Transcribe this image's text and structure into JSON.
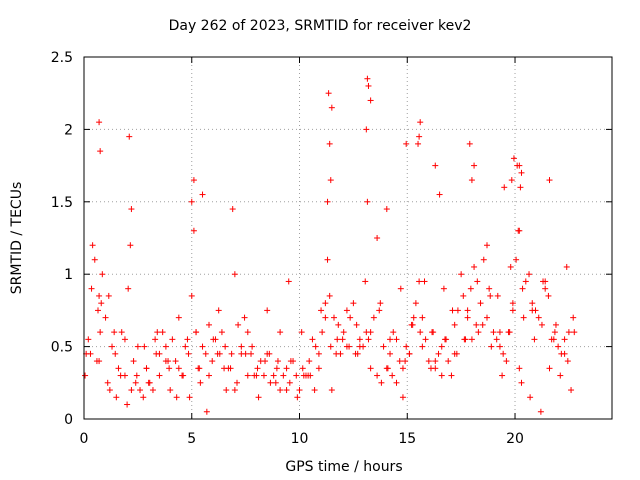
{
  "chart_data": {
    "type": "scatter",
    "title": "Day 262 of 2023, SRMTID for receiver kev2",
    "xlabel": "GPS time / hours",
    "ylabel": "SRMTID / TECUs",
    "xlim": [
      0,
      24.5
    ],
    "ylim": [
      0,
      2.5
    ],
    "xticks": [
      0,
      5,
      10,
      15,
      20
    ],
    "xtick_labels": [
      "0",
      "5",
      "10",
      "15",
      "20"
    ],
    "yticks": [
      0,
      0.5,
      1,
      1.5,
      2,
      2.5
    ],
    "ytick_labels": [
      "0",
      "0.5",
      "1",
      "1.5",
      "2",
      "2.5"
    ],
    "grid": true,
    "marker": "+",
    "series": [
      {
        "name": "SRMTID",
        "color": "#ff0000",
        "x": [
          0.05,
          0.2,
          0.35,
          0.5,
          0.65,
          0.75,
          0.85,
          1.0,
          1.15,
          1.3,
          1.45,
          1.6,
          1.75,
          1.9,
          2.05,
          2.15,
          2.3,
          2.45,
          2.6,
          2.75,
          2.9,
          3.05,
          3.2,
          3.35,
          3.5,
          3.65,
          3.8,
          3.95,
          4.1,
          4.25,
          4.4,
          4.55,
          4.7,
          4.85,
          5.0,
          5.1,
          5.2,
          5.35,
          5.5,
          5.65,
          5.8,
          5.95,
          6.1,
          6.25,
          6.4,
          6.55,
          6.7,
          6.85,
          7.0,
          7.15,
          7.3,
          7.45,
          7.6,
          7.75,
          7.9,
          8.05,
          8.2,
          8.35,
          8.5,
          8.65,
          8.8,
          8.95,
          9.1,
          9.25,
          9.4,
          9.55,
          9.7,
          9.85,
          10.0,
          10.15,
          10.3,
          10.45,
          10.6,
          10.75,
          10.9,
          11.05,
          11.2,
          11.3,
          11.45,
          11.6,
          11.75,
          11.9,
          12.05,
          12.2,
          12.35,
          12.5,
          12.65,
          12.8,
          12.95,
          13.05,
          13.15,
          13.3,
          13.45,
          13.6,
          13.75,
          13.9,
          14.05,
          14.2,
          14.35,
          14.5,
          14.65,
          14.8,
          14.95,
          15.1,
          15.25,
          15.4,
          15.55,
          15.7,
          15.85,
          16.0,
          16.15,
          16.3,
          16.45,
          16.6,
          16.75,
          16.9,
          17.05,
          17.2,
          17.35,
          17.5,
          17.65,
          17.8,
          17.95,
          18.1,
          18.25,
          18.4,
          18.55,
          18.7,
          18.85,
          19.0,
          19.15,
          19.3,
          19.45,
          19.6,
          19.75,
          19.9,
          20.05,
          20.2,
          20.35,
          20.5,
          20.65,
          20.8,
          20.95,
          21.1,
          21.25,
          21.4,
          21.55,
          21.7,
          21.85,
          22.0,
          22.15,
          22.3,
          22.45,
          22.6,
          22.75,
          0.1,
          0.4,
          0.7,
          1.2,
          1.5,
          2.0,
          2.5,
          3.0,
          3.4,
          3.9,
          4.3,
          4.8,
          5.3,
          5.8,
          6.2,
          6.6,
          7.1,
          7.6,
          8.1,
          8.6,
          9.0,
          9.5,
          10.1,
          10.5,
          11.0,
          11.4,
          11.8,
          12.3,
          12.7,
          13.2,
          13.6,
          14.1,
          14.5,
          14.9,
          15.3,
          15.8,
          16.2,
          16.7,
          17.1,
          17.6,
          18.0,
          18.5,
          18.9,
          19.4,
          19.8,
          20.3,
          20.7,
          21.2,
          21.6,
          22.1,
          22.5,
          0.6,
          1.1,
          1.7,
          2.2,
          2.8,
          3.3,
          3.8,
          4.4,
          4.9,
          5.4,
          6.0,
          6.5,
          7.0,
          7.5,
          8.0,
          8.5,
          9.1,
          9.6,
          10.2,
          10.7,
          11.2,
          11.7,
          12.2,
          12.8,
          13.3,
          13.8,
          14.3,
          14.8,
          15.2,
          15.7,
          16.3,
          16.8,
          17.3,
          17.8,
          18.3,
          18.8,
          19.3,
          19.9,
          20.4,
          20.9,
          21.4,
          21.9,
          22.4,
          0.3,
          0.8,
          1.4,
          1.9,
          2.4,
          2.9,
          3.5,
          4.0,
          4.6,
          5.2,
          5.7,
          6.3,
          6.8,
          7.3,
          7.8,
          8.4,
          8.9,
          9.4,
          9.9,
          10.4,
          10.9,
          11.5,
          12.0,
          12.6,
          13.1,
          13.7,
          14.2,
          14.7,
          15.1,
          15.6,
          16.1,
          16.6,
          17.2,
          17.7,
          18.2,
          18.7,
          19.2,
          19.7,
          20.2,
          20.8,
          21.3,
          21.8,
          22.3,
          22.7,
          0.7,
          0.75,
          0.7,
          2.1,
          2.2,
          5.0,
          5.1,
          5.5,
          11.3,
          11.35,
          11.5,
          11.4,
          11.45,
          13.1,
          13.15,
          13.2,
          13.3,
          14.95,
          15.5,
          15.6,
          15.55,
          17.9,
          18.0,
          18.1,
          19.5,
          20.1,
          20.2,
          20.3,
          21.6,
          6.9,
          14.05,
          19.85,
          16.3,
          16.5,
          20.15,
          19.95,
          20.25
        ],
        "y": [
          0.3,
          0.55,
          0.9,
          1.1,
          0.75,
          0.6,
          1.0,
          0.7,
          0.85,
          0.5,
          0.45,
          0.35,
          0.6,
          0.55,
          0.9,
          1.2,
          0.4,
          0.3,
          0.2,
          0.15,
          0.35,
          0.25,
          0.2,
          0.45,
          0.3,
          0.6,
          0.5,
          0.35,
          0.55,
          0.4,
          0.7,
          0.3,
          0.5,
          0.45,
          0.85,
          1.3,
          0.6,
          0.35,
          0.5,
          0.45,
          0.65,
          0.4,
          0.55,
          0.75,
          0.6,
          0.5,
          0.35,
          0.45,
          1.0,
          0.65,
          0.5,
          0.7,
          0.6,
          0.45,
          0.3,
          0.35,
          0.4,
          0.3,
          0.45,
          0.25,
          0.3,
          0.35,
          0.2,
          0.3,
          0.35,
          0.25,
          0.4,
          0.3,
          0.2,
          0.35,
          0.3,
          0.4,
          0.55,
          0.5,
          0.45,
          0.6,
          0.8,
          1.1,
          0.5,
          0.7,
          0.55,
          0.45,
          0.6,
          0.5,
          0.7,
          0.8,
          0.65,
          0.55,
          0.5,
          0.95,
          1.5,
          0.6,
          0.7,
          1.25,
          0.8,
          0.5,
          0.35,
          0.45,
          0.6,
          0.55,
          0.4,
          0.35,
          0.5,
          0.45,
          0.65,
          0.8,
          0.95,
          0.7,
          0.55,
          0.4,
          0.6,
          0.35,
          0.45,
          0.5,
          0.55,
          0.4,
          0.3,
          0.65,
          0.75,
          1.0,
          0.55,
          0.7,
          0.9,
          1.05,
          0.95,
          0.8,
          1.1,
          0.7,
          0.85,
          0.6,
          0.55,
          0.5,
          0.45,
          0.4,
          0.6,
          0.75,
          1.1,
          1.3,
          0.9,
          0.95,
          1.0,
          0.8,
          0.75,
          0.7,
          0.65,
          0.9,
          0.85,
          0.55,
          0.6,
          0.5,
          0.45,
          0.55,
          0.4,
          0.2,
          0.6,
          0.45,
          1.2,
          0.85,
          0.2,
          0.15,
          0.1,
          0.5,
          0.25,
          0.6,
          0.4,
          0.15,
          0.55,
          0.35,
          0.3,
          0.45,
          0.2,
          0.25,
          0.3,
          0.15,
          0.45,
          0.4,
          0.95,
          0.6,
          0.3,
          0.75,
          0.85,
          0.65,
          0.5,
          0.45,
          0.55,
          0.3,
          0.35,
          0.25,
          0.4,
          0.7,
          0.95,
          0.6,
          0.9,
          0.75,
          0.85,
          0.55,
          0.65,
          0.5,
          0.3,
          1.05,
          0.25,
          0.15,
          0.05,
          0.35,
          0.3,
          0.6,
          0.4,
          0.25,
          0.3,
          0.2,
          0.5,
          0.55,
          0.4,
          0.35,
          0.15,
          0.25,
          0.55,
          0.35,
          0.2,
          0.45,
          0.3,
          0.75,
          0.6,
          0.4,
          0.3,
          0.2,
          0.7,
          0.45,
          0.75,
          0.5,
          0.35,
          0.25,
          0.3,
          0.15,
          0.65,
          0.5,
          0.4,
          0.55,
          0.45,
          0.75,
          0.6,
          0.9,
          0.6,
          0.8,
          0.7,
          0.55,
          0.95,
          0.65,
          1.05,
          0.45,
          0.8,
          0.6,
          0.3,
          0.25,
          0.35,
          0.45,
          0.2,
          0.3,
          0.6,
          0.05,
          0.45,
          0.35,
          0.45,
          0.5,
          0.4,
          0.25,
          0.2,
          0.15,
          0.3,
          0.35,
          0.2,
          0.55,
          0.45,
          0.6,
          0.75,
          0.55,
          0.9,
          0.45,
          0.6,
          0.35,
          0.3,
          0.45,
          0.55,
          0.65,
          1.2,
          0.85,
          0.6,
          0.35,
          0.75,
          0.95,
          0.55,
          0.45,
          0.7,
          0.4,
          1.85,
          2.05,
          1.95,
          1.45,
          1.5,
          1.65,
          1.55,
          1.5,
          2.25,
          2.15,
          1.9,
          1.65,
          2.0,
          2.35,
          2.3,
          2.2,
          1.9,
          1.9,
          2.05,
          1.95,
          1.9,
          1.65,
          1.75,
          1.6,
          1.75,
          1.75,
          1.7,
          1.65,
          1.45,
          1.45,
          1.65,
          1.75,
          1.55,
          1.3,
          1.8,
          1.6
        ],
        "vtab": 0
      }
    ]
  }
}
